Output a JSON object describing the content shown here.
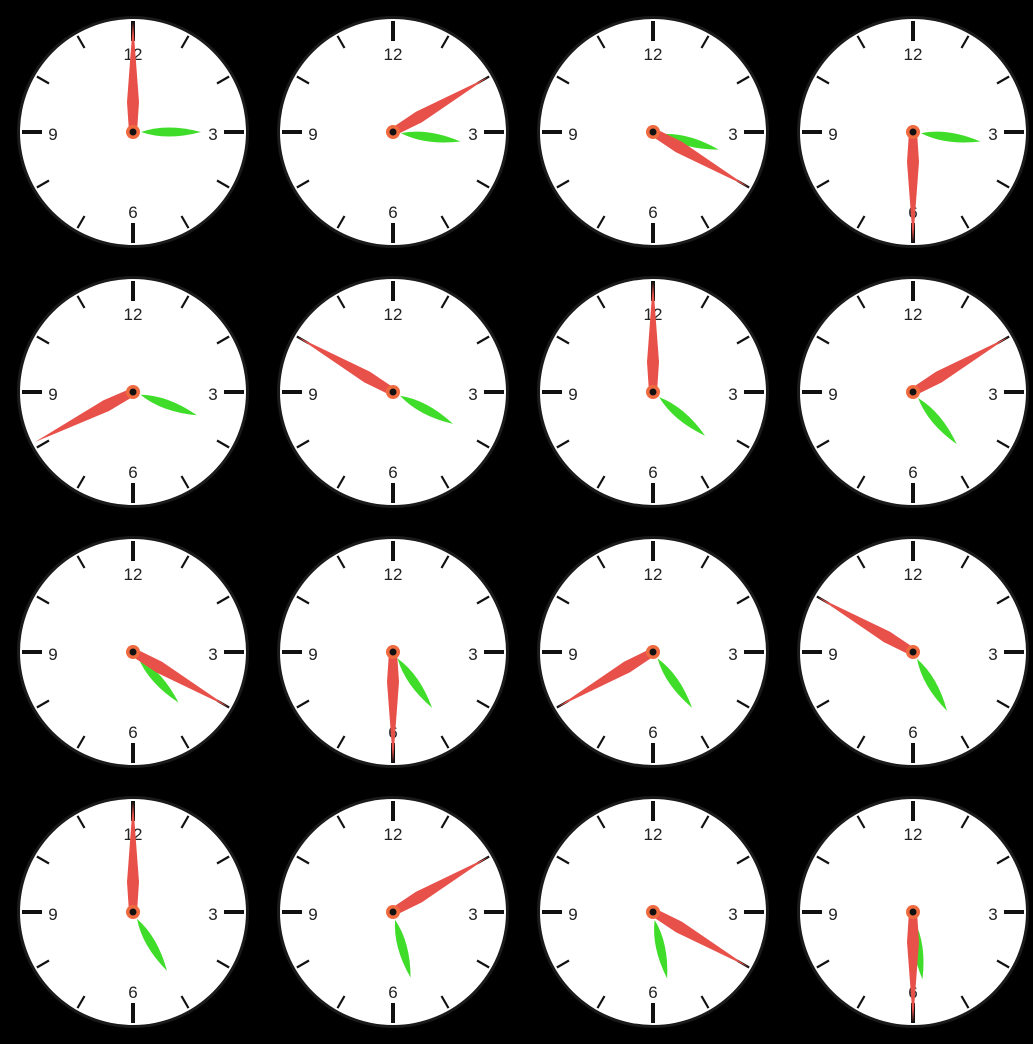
{
  "colors": {
    "background": "#000000",
    "face": "#ffffff",
    "ticks": "#111111",
    "numerals": "#222222",
    "hour_hand": "#3fdc2a",
    "minute_hand": "#e8504a",
    "hub_outer": "#f06a3f",
    "hub_inner": "#111111"
  },
  "numerals": [
    "12",
    "3",
    "6",
    "9"
  ],
  "clocks": [
    {
      "hour_angle": 90,
      "minute_angle": 0
    },
    {
      "hour_angle": 98,
      "minute_angle": 60
    },
    {
      "hour_angle": 105,
      "minute_angle": 120
    },
    {
      "hour_angle": 98,
      "minute_angle": 180
    },
    {
      "hour_angle": 110,
      "minute_angle": 243
    },
    {
      "hour_angle": 118,
      "minute_angle": 300
    },
    {
      "hour_angle": 130,
      "minute_angle": 0
    },
    {
      "hour_angle": 140,
      "minute_angle": 60
    },
    {
      "hour_angle": 138,
      "minute_angle": 120
    },
    {
      "hour_angle": 145,
      "minute_angle": 180
    },
    {
      "hour_angle": 145,
      "minute_angle": 240
    },
    {
      "hour_angle": 150,
      "minute_angle": 300
    },
    {
      "hour_angle": 150,
      "minute_angle": 0
    },
    {
      "hour_angle": 165,
      "minute_angle": 60
    },
    {
      "hour_angle": 168,
      "minute_angle": 120
    },
    {
      "hour_angle": 172,
      "minute_angle": 180
    }
  ]
}
